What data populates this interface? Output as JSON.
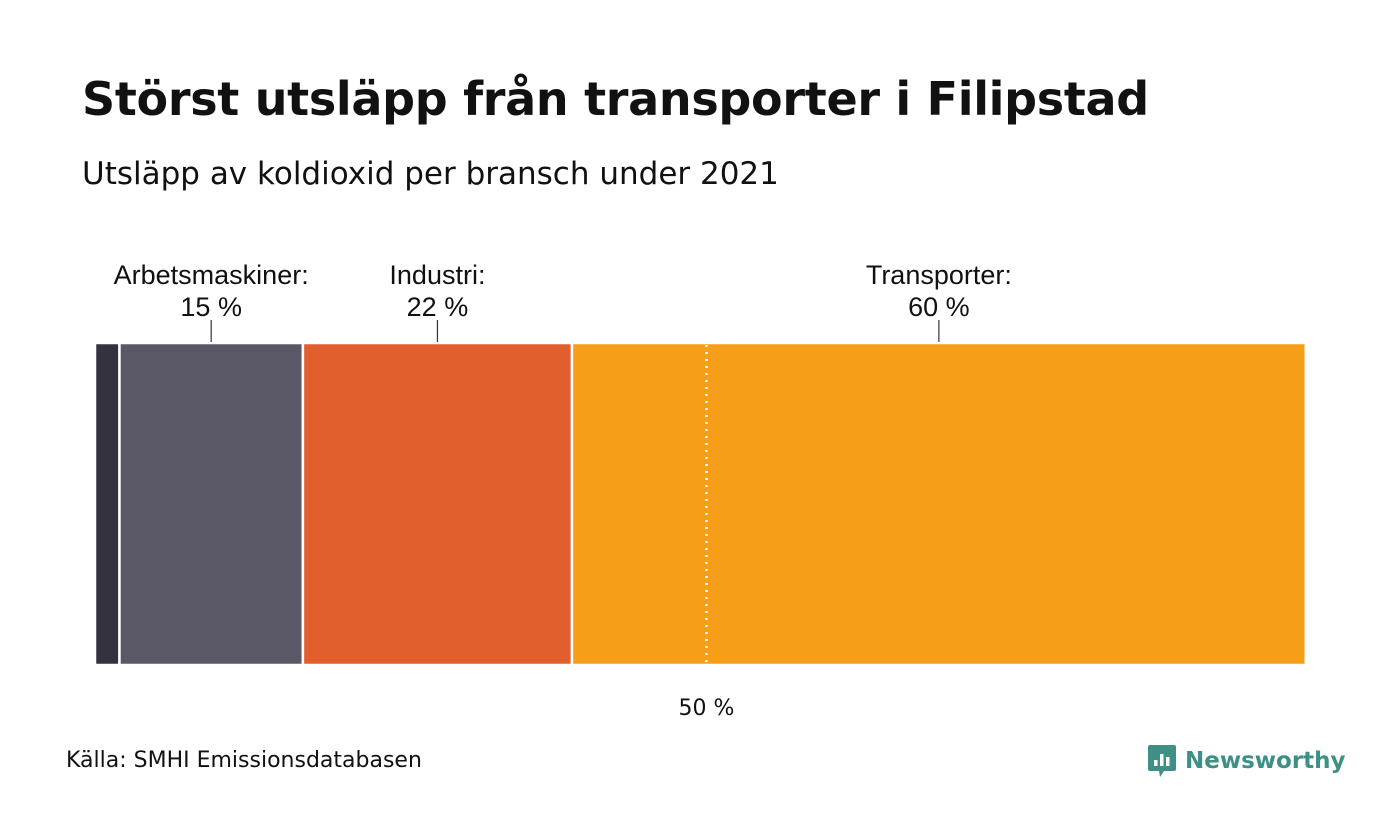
{
  "header": {
    "title": "Störst utsläpp från transporter i Filipstad",
    "subtitle": "Utsläpp av koldioxid per bransch under 2021"
  },
  "chart_data": {
    "type": "bar",
    "orientation": "stacked-horizontal-100",
    "segments": [
      {
        "name": "",
        "value": 2,
        "color": "#34323f",
        "label": "",
        "value_label": ""
      },
      {
        "name": "Arbetsmaskiner",
        "value": 15,
        "color": "#5a5866",
        "label": "Arbetsmaskiner:",
        "value_label": "15 %"
      },
      {
        "name": "Industri",
        "value": 22,
        "color": "#e05f2d",
        "label": "Industri:",
        "value_label": "22 %"
      },
      {
        "name": "Transporter",
        "value": 60,
        "color": "#f79e18",
        "label": "Transporter:",
        "value_label": "60 %"
      }
    ],
    "reference_line": {
      "value": 50,
      "label": "50 %"
    },
    "xlim": [
      0,
      100
    ]
  },
  "footer": {
    "source": "Källa: SMHI Emissionsdatabasen",
    "brand": "Newsworthy",
    "brand_icon": "newsworthy-logo-icon",
    "brand_color": "#3e8f85"
  }
}
